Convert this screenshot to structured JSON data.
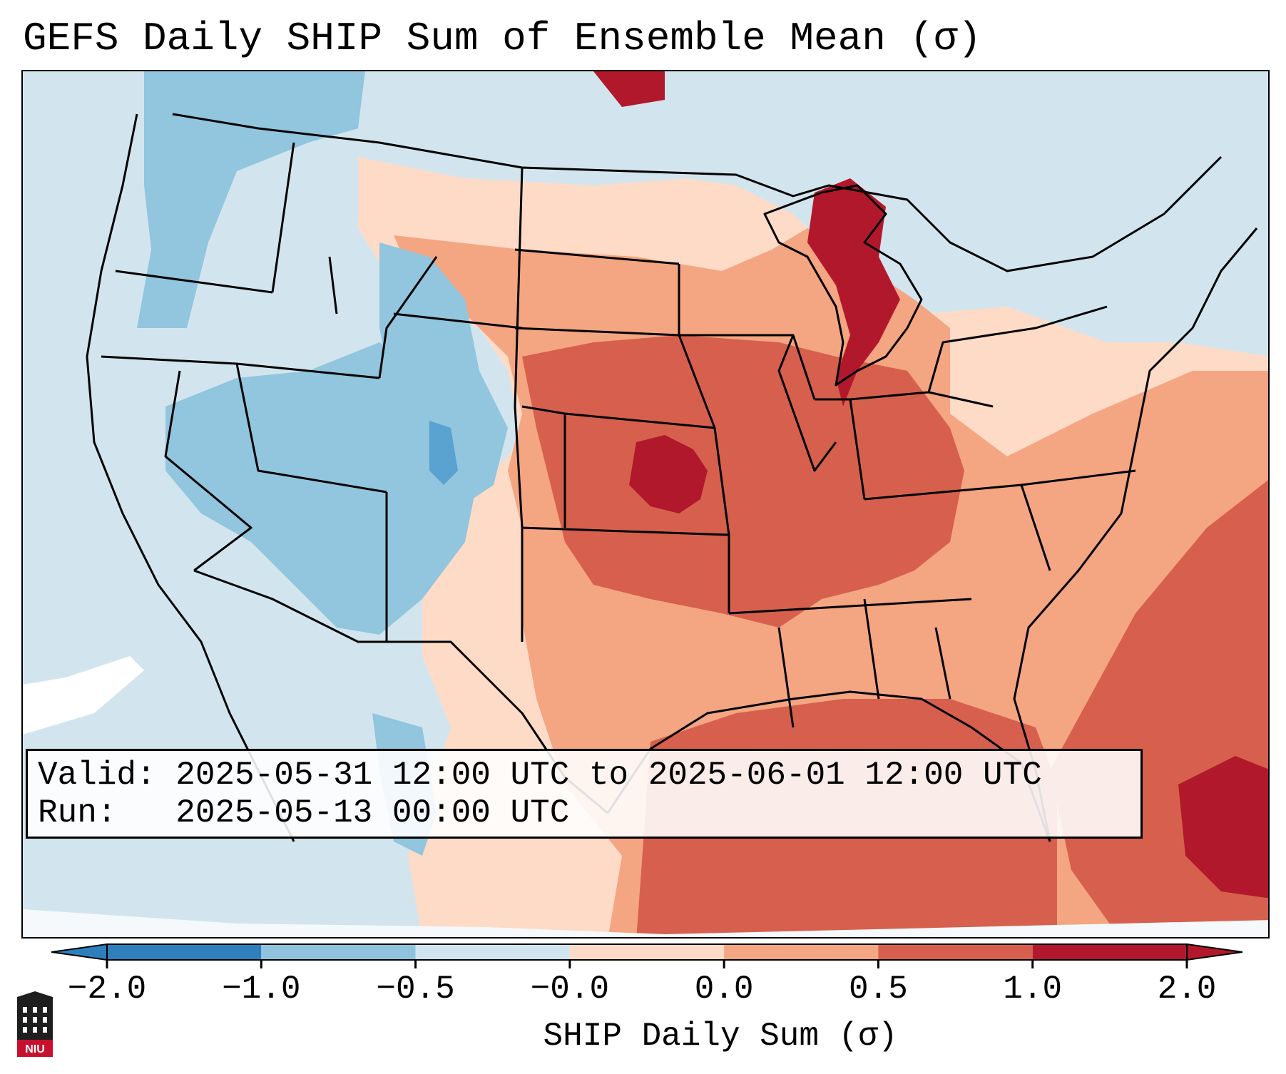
{
  "title": "GEFS Daily SHIP Sum of Ensemble Mean (σ)",
  "info": {
    "valid": "Valid: 2025-05-31 12:00 UTC to 2025-06-01 12:00 UTC",
    "run": "Run:   2025-05-13 00:00 UTC"
  },
  "colorbar": {
    "label": "SHIP Daily Sum (σ)",
    "ticks": [
      "−2.0",
      "−1.0",
      "−0.5",
      "−0.0",
      "0.0",
      "0.5",
      "1.0",
      "2.0"
    ],
    "colors": [
      "#2f7fbd",
      "#8fc3de",
      "#d1e5f0",
      "#f7f7f7",
      "#fddbc7",
      "#f4a582",
      "#d6604d",
      "#b2182b"
    ]
  },
  "logo": {
    "text": "NIU"
  },
  "map": {
    "background": "#d2e5ef",
    "region": "Continental United States and surrounding waters",
    "colors": {
      "strong_negative": "#5aa2cf",
      "moderate_negative": "#92c5de",
      "weak_negative": "#d1e5f0",
      "neutral": "#f7f7f7",
      "weak_positive": "#fddbc7",
      "moderate_positive": "#f4a582",
      "strong_positive": "#d6604d",
      "extreme_positive": "#b2182b"
    }
  }
}
